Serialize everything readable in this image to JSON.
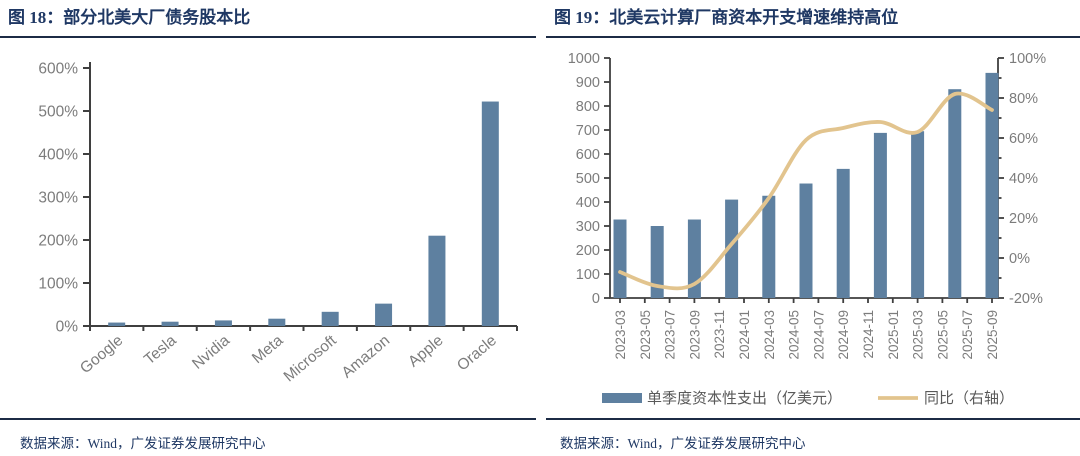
{
  "panels": [
    {
      "title": "图 18：部分北美大厂债务股本比",
      "source": "数据来源：Wind，广发证券发展研究中心"
    },
    {
      "title": "图 19：北美云计算厂商资本开支增速维持高位",
      "source": "数据来源：Wind，广发证券发展研究中心"
    }
  ],
  "colors": {
    "bar": "#5E80A0",
    "line": "#E2C48E",
    "axis": "#3F3F3F",
    "tick_text": "#7C7C7C",
    "legend_text": "#595959",
    "title_text": "#1F3864",
    "rule": "#1c2b45"
  },
  "chart_data": [
    {
      "type": "bar",
      "title": "部分北美大厂债务股本比",
      "categories": [
        "Google",
        "Tesla",
        "Nvidia",
        "Meta",
        "Microsoft",
        "Amazon",
        "Apple",
        "Oracle"
      ],
      "values": [
        8,
        10,
        13,
        17,
        33,
        52,
        210,
        522
      ],
      "unit": "%",
      "xlabel": "",
      "ylabel": "",
      "ylim": [
        0,
        600
      ],
      "ytick_step": 100,
      "grid": false,
      "legend_position": "none"
    },
    {
      "type": "bar+line",
      "title": "北美云计算厂商资本开支增速维持高位",
      "x_tick_labels": [
        "2023-03",
        "2023-05",
        "2023-07",
        "2023-09",
        "2023-11",
        "2024-01",
        "2024-03",
        "2024-05",
        "2024-07",
        "2024-09",
        "2024-11",
        "2025-01",
        "2025-03",
        "2025-05",
        "2025-07",
        "2025-09"
      ],
      "series": [
        {
          "name": "单季度资本性支出（亿美元）",
          "type": "bar",
          "axis": "left",
          "x": [
            "2023-03",
            "2023-06",
            "2023-09",
            "2023-12",
            "2024-03",
            "2024-06",
            "2024-09",
            "2024-12",
            "2025-03",
            "2025-06",
            "2025-09"
          ],
          "values": [
            327,
            300,
            327,
            410,
            426,
            477,
            538,
            688,
            695,
            870,
            938
          ]
        },
        {
          "name": "同比（右轴）",
          "type": "line",
          "axis": "right",
          "x": [
            "2023-03",
            "2023-06",
            "2023-09",
            "2023-12",
            "2024-03",
            "2024-06",
            "2024-09",
            "2024-12",
            "2025-03",
            "2025-06",
            "2025-09"
          ],
          "values": [
            -7,
            -14,
            -13,
            7,
            30,
            59,
            65,
            68,
            63,
            82,
            74
          ]
        }
      ],
      "left_ylim": [
        0,
        1000
      ],
      "left_ytick_step": 100,
      "right_ylim": [
        -20,
        100
      ],
      "right_ytick_step": 20,
      "right_unit": "%",
      "grid": false,
      "legend_position": "bottom"
    }
  ]
}
